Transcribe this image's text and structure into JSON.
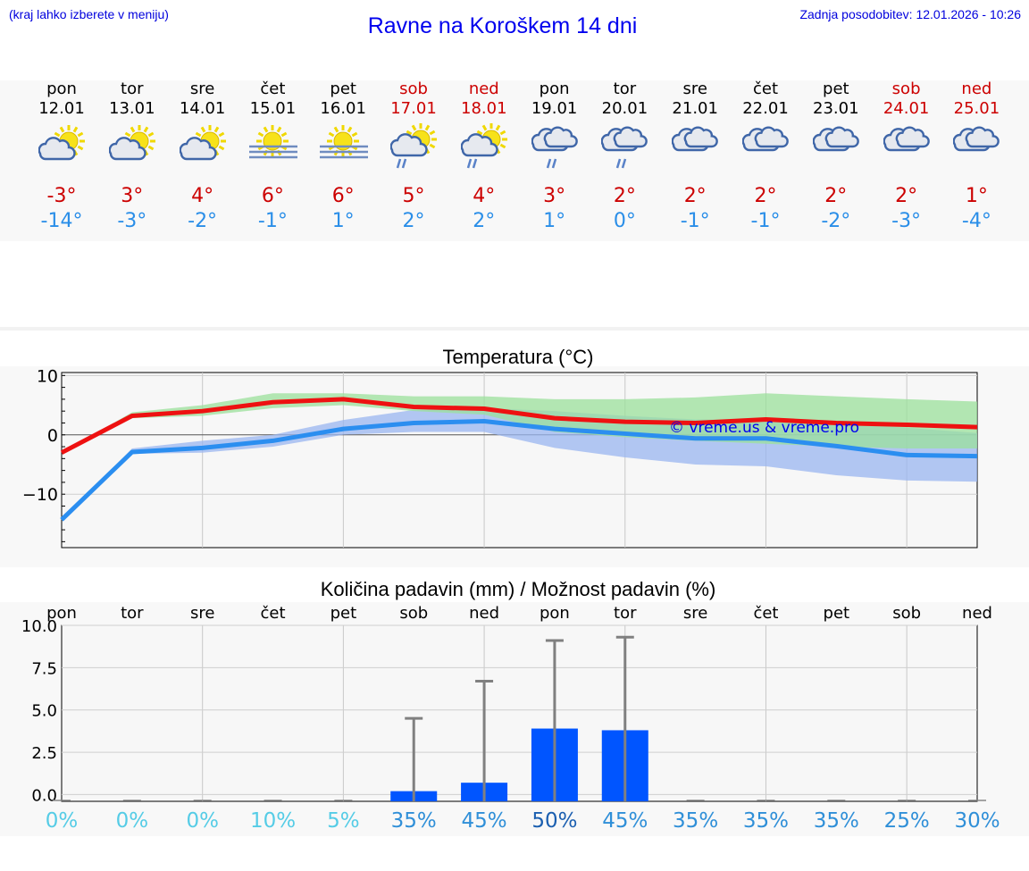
{
  "header": {
    "menu_hint": "(kraj lahko izberete v meniju)",
    "title": "Ravne na Koroškem 14 dni",
    "updated": "Zadnja posodobitev: 12.01.2026 - 10:26"
  },
  "days": [
    {
      "name": "pon",
      "date": "12.01",
      "weekend": false,
      "icon": "sun-cloud-icon",
      "tmax": "-3°",
      "tmin": "-14°"
    },
    {
      "name": "tor",
      "date": "13.01",
      "weekend": false,
      "icon": "sun-cloud-icon",
      "tmax": "3°",
      "tmin": "-3°"
    },
    {
      "name": "sre",
      "date": "14.01",
      "weekend": false,
      "icon": "sun-cloud-icon",
      "tmax": "4°",
      "tmin": "-2°"
    },
    {
      "name": "čet",
      "date": "15.01",
      "weekend": false,
      "icon": "sun-fog-icon",
      "tmax": "6°",
      "tmin": "-1°"
    },
    {
      "name": "pet",
      "date": "16.01",
      "weekend": false,
      "icon": "sun-fog-icon",
      "tmax": "6°",
      "tmin": "1°"
    },
    {
      "name": "sob",
      "date": "17.01",
      "weekend": true,
      "icon": "sun-cloud-rain-icon",
      "tmax": "5°",
      "tmin": "2°"
    },
    {
      "name": "ned",
      "date": "18.01",
      "weekend": true,
      "icon": "sun-cloud-rain-icon",
      "tmax": "4°",
      "tmin": "2°"
    },
    {
      "name": "pon",
      "date": "19.01",
      "weekend": false,
      "icon": "cloud-rain-icon",
      "tmax": "3°",
      "tmin": "1°"
    },
    {
      "name": "tor",
      "date": "20.01",
      "weekend": false,
      "icon": "cloud-rain-icon",
      "tmax": "2°",
      "tmin": "0°"
    },
    {
      "name": "sre",
      "date": "21.01",
      "weekend": false,
      "icon": "cloud-icon",
      "tmax": "2°",
      "tmin": "-1°"
    },
    {
      "name": "čet",
      "date": "22.01",
      "weekend": false,
      "icon": "cloud-icon",
      "tmax": "2°",
      "tmin": "-1°"
    },
    {
      "name": "pet",
      "date": "23.01",
      "weekend": false,
      "icon": "cloud-icon",
      "tmax": "2°",
      "tmin": "-2°"
    },
    {
      "name": "sob",
      "date": "24.01",
      "weekend": true,
      "icon": "cloud-icon",
      "tmax": "2°",
      "tmin": "-3°"
    },
    {
      "name": "ned",
      "date": "25.01",
      "weekend": true,
      "icon": "cloud-icon",
      "tmax": "1°",
      "tmin": "-4°"
    }
  ],
  "chart_data": [
    {
      "type": "line",
      "title": "Temperatura (°C)",
      "x": [
        0,
        1,
        2,
        3,
        4,
        5,
        6,
        7,
        8,
        9,
        10,
        11,
        12,
        13
      ],
      "ylim": [
        -19,
        10.5
      ],
      "yticks": [
        10,
        0,
        -10
      ],
      "ytick_labels": [
        "10",
        "0",
        "−10"
      ],
      "watermark": "© vreme.us & vreme.pro",
      "series": [
        {
          "name": "max",
          "color": "#ee1111",
          "values": [
            -3,
            3.2,
            4,
            5.5,
            6,
            4.7,
            4.4,
            2.8,
            2.2,
            2,
            2.6,
            2,
            1.7,
            1.3
          ]
        },
        {
          "name": "min",
          "color": "#2b8ef0",
          "values": [
            -14.3,
            -2.9,
            -2.2,
            -1,
            1,
            2,
            2.3,
            1,
            0.2,
            -0.6,
            -0.6,
            -1.9,
            -3.4,
            -3.6
          ]
        },
        {
          "name": "max range",
          "color": "#9be09b",
          "low": [
            -3,
            2.8,
            3.2,
            4.5,
            5,
            4,
            3.4,
            0.5,
            -0.4,
            -1,
            -1.5,
            -2,
            -2.3,
            -2.3
          ],
          "high": [
            -3,
            3.8,
            5,
            7,
            7,
            6.5,
            6.5,
            6,
            6,
            6.3,
            7,
            6.5,
            6,
            5.6
          ]
        },
        {
          "name": "min range",
          "color": "#9ab6f0",
          "low": [
            -14.3,
            -3.2,
            -3,
            -2,
            0,
            0.5,
            0.5,
            -2.2,
            -3.8,
            -5,
            -5.3,
            -6.8,
            -7.7,
            -7.9
          ],
          "high": [
            -14.3,
            -2.3,
            -1,
            0,
            2.5,
            4.2,
            4.5,
            4,
            3.2,
            2.6,
            2.5,
            1.8,
            1.2,
            0.3
          ]
        }
      ]
    },
    {
      "type": "bar",
      "title": "Količina padavin (mm) / Možnost padavin (%)",
      "categories": [
        "pon",
        "tor",
        "sre",
        "čet",
        "pet",
        "sob",
        "ned",
        "pon",
        "tor",
        "sre",
        "čet",
        "pet",
        "sob",
        "ned"
      ],
      "values": [
        0,
        0,
        0,
        0,
        0,
        0.2,
        0.7,
        3.9,
        3.8,
        0,
        0,
        0,
        0,
        0
      ],
      "error_high": [
        0,
        0,
        0,
        0,
        0,
        4.5,
        6.7,
        9.1,
        9.3,
        0,
        0,
        0,
        0,
        0
      ],
      "probability": [
        "0%",
        "0%",
        "0%",
        "10%",
        "5%",
        "35%",
        "45%",
        "50%",
        "45%",
        "35%",
        "35%",
        "35%",
        "25%",
        "30%"
      ],
      "ylim": [
        -0.4,
        10
      ],
      "yticks": [
        10,
        7.5,
        5,
        2.5,
        0
      ],
      "ytick_labels": [
        "10.0",
        "7.5",
        "5.0",
        "2.5",
        "0.0"
      ],
      "bar_color": "#0055ff",
      "error_color": "#808080"
    }
  ]
}
